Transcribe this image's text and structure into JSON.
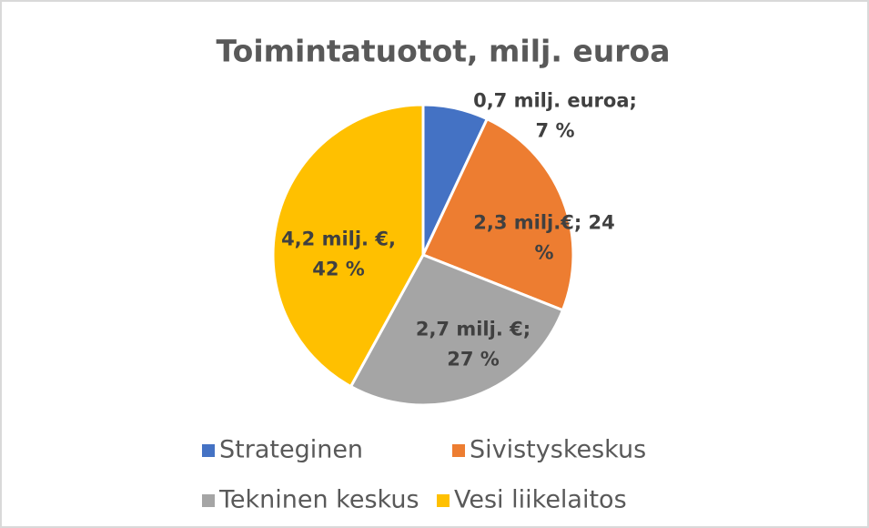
{
  "chart_data": {
    "type": "pie",
    "title": "Toimintatuotot, milj. euroa",
    "categories": [
      "Strateginen",
      "Sivistyskeskus",
      "Tekninen keskus",
      "Vesi liikelaitos"
    ],
    "values": [
      7,
      24,
      27,
      42
    ],
    "value_labels": [
      "0,7 milj. euroa;\n7 %",
      "2,3 milj.€; 24\n%",
      "2,7 milj. €;\n27 %",
      "4,2 milj. €,\n42 %"
    ],
    "colors": [
      "#4472c4",
      "#ed7d31",
      "#a5a5a5",
      "#ffc000"
    ],
    "legend": "bottom"
  }
}
